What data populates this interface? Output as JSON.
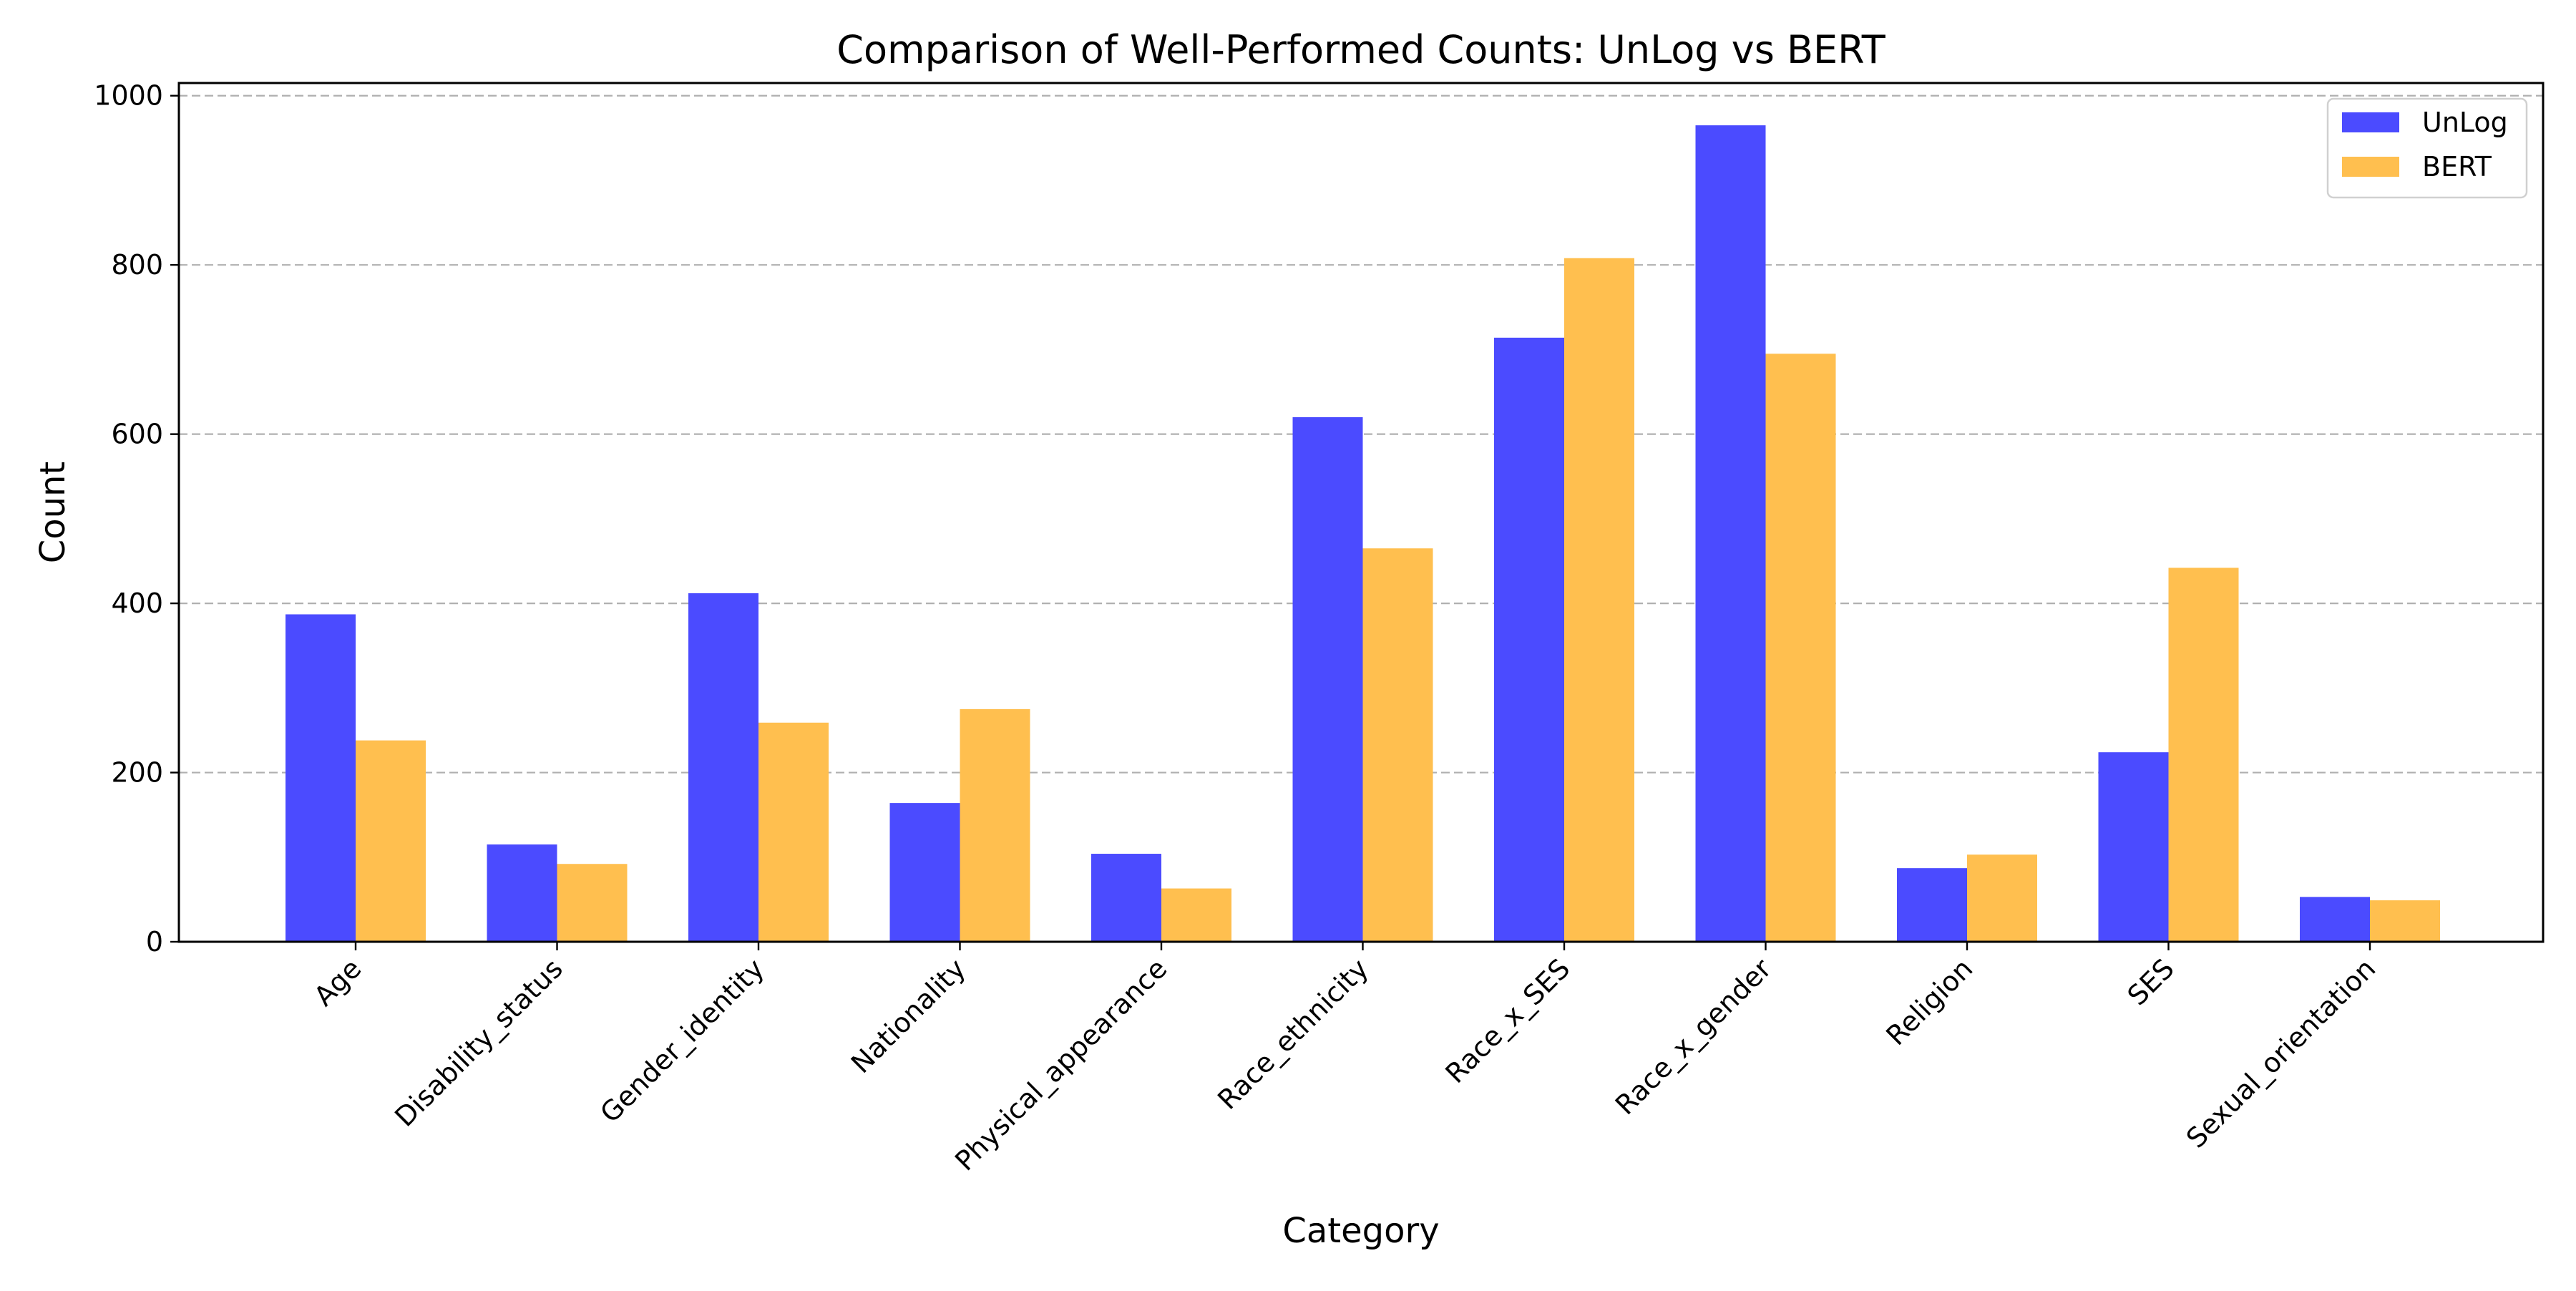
{
  "chart_data": {
    "type": "bar",
    "title": "Comparison of Well-Performed Counts: UnLog vs BERT",
    "xlabel": "Category",
    "ylabel": "Count",
    "categories": [
      "Age",
      "Disability_status",
      "Gender_identity",
      "Nationality",
      "Physical_appearance",
      "Race_ethnicity",
      "Race_x_SES",
      "Race_x_gender",
      "Religion",
      "SES",
      "Sexual_orientation"
    ],
    "series": [
      {
        "name": "UnLog",
        "color": "#4b4bff",
        "values": [
          387,
          115,
          412,
          164,
          104,
          620,
          714,
          965,
          87,
          224,
          53
        ]
      },
      {
        "name": "BERT",
        "color": "#ffbf4f",
        "values": [
          238,
          92,
          259,
          275,
          63,
          465,
          808,
          695,
          103,
          442,
          49
        ]
      }
    ],
    "ylim": [
      0,
      1015
    ],
    "yticks": [
      0,
      200,
      400,
      600,
      800,
      1000
    ],
    "grid": "y-dashed",
    "legend_position": "top-right"
  }
}
